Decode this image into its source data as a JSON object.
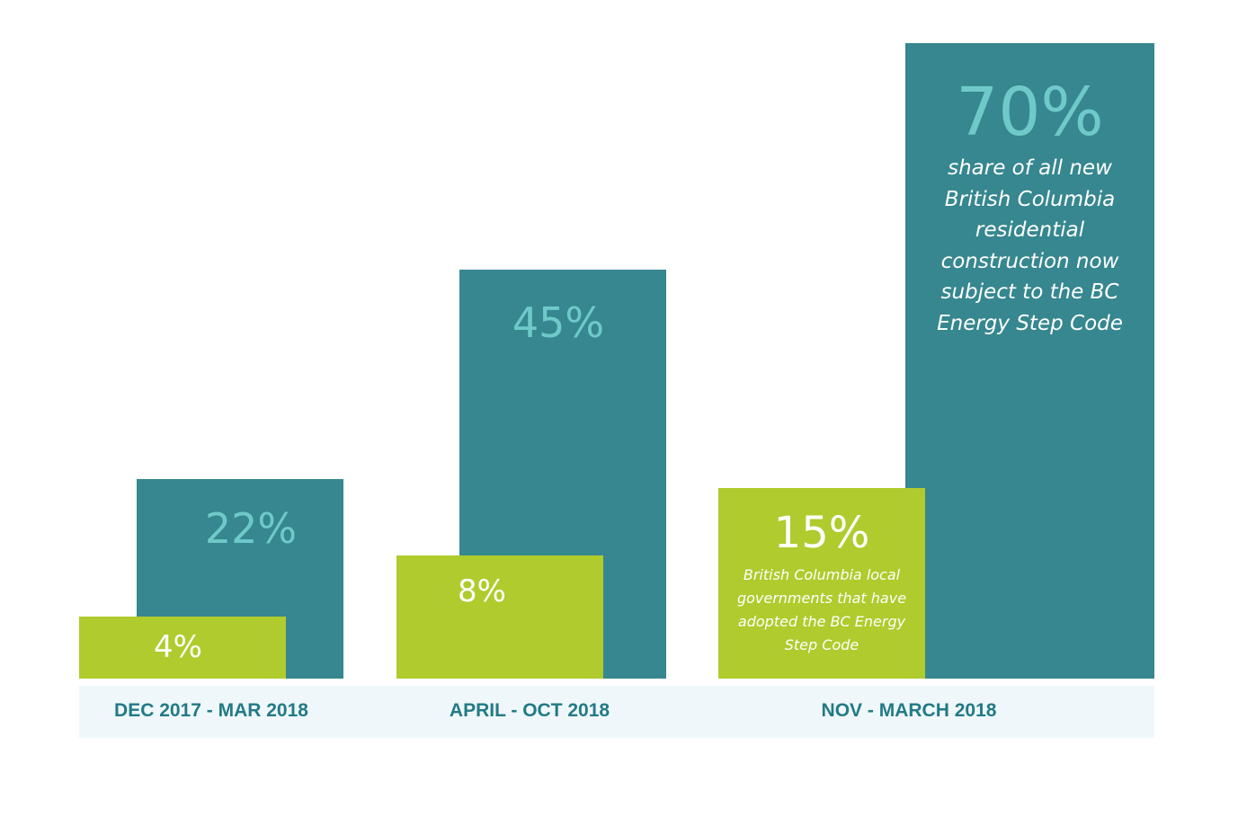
{
  "chart_data": {
    "type": "bar",
    "categories": [
      "DEC 2017 - MAR 2018",
      "APRIL - OCT 2018",
      "NOV - MARCH 2018"
    ],
    "series": [
      {
        "values": [
          22,
          45,
          70
        ],
        "labels": [
          "22%",
          "45%",
          "70%"
        ]
      },
      {
        "values": [
          4,
          8,
          15
        ],
        "labels": [
          "4%",
          "8%",
          "15%"
        ]
      }
    ],
    "annotations": [
      {
        "category": "NOV - MARCH 2018",
        "value": "70%",
        "text": "share of all new British Columbia residential construction now subject to the BC Energy Step Code"
      },
      {
        "category": "NOV - MARCH 2018",
        "value": "15%",
        "text": "British Columbia local governments that have adopted the BC Energy Step Code"
      }
    ],
    "colors": {
      "teal": "#36878f",
      "green": "#afcb2d",
      "teal_label": "#6fc9c9",
      "axis_band": "#eff7fa",
      "axis_text": "#237a86"
    },
    "grid": false,
    "legend": "none"
  },
  "decorations": {
    "logo": "bc-energy-step-code-fan-logo"
  }
}
